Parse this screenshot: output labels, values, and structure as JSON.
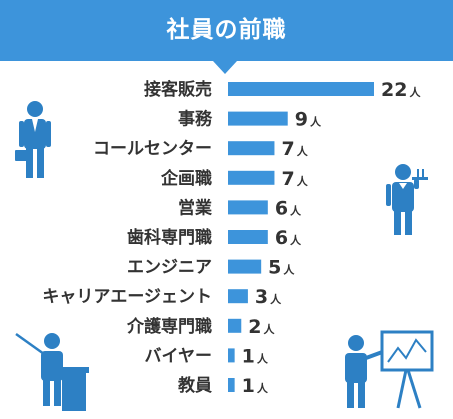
{
  "header": {
    "title": "社員の前職"
  },
  "chart_data": {
    "type": "bar",
    "orientation": "horizontal",
    "title": "社員の前職",
    "categories": [
      "接客販売",
      "事務",
      "コールセンター",
      "企画職",
      "営業",
      "歯科専門職",
      "エンジニア",
      "キャリアエージェント",
      "介護専門職",
      "バイヤー",
      "教員"
    ],
    "values": [
      22,
      9,
      7,
      7,
      6,
      6,
      5,
      3,
      2,
      1,
      1
    ],
    "unit": "人",
    "xlim": [
      0,
      22
    ],
    "grid": false,
    "legend": "none",
    "bar_color": "#3d94db"
  }
}
